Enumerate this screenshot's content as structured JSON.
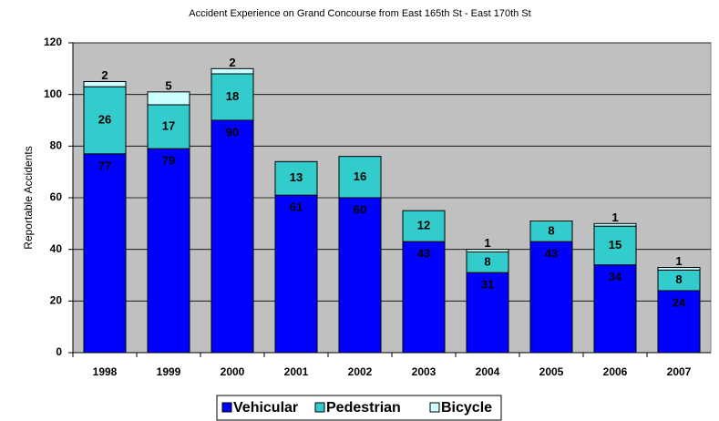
{
  "chart_data": {
    "type": "stacked_bar",
    "title": "Accident Experience on Grand Concourse from East 165th St - East 170th St",
    "y_label": "Reportable Accidents",
    "categories": [
      "1998",
      "1999",
      "2000",
      "2001",
      "2002",
      "2003",
      "2004",
      "2005",
      "2006",
      "2007"
    ],
    "series": [
      {
        "name": "Vehicular",
        "color": "#0000ff",
        "values": [
          77,
          79,
          90,
          61,
          60,
          43,
          31,
          43,
          34,
          24
        ]
      },
      {
        "name": "Pedestrian",
        "color": "#33cccc",
        "values": [
          26,
          17,
          18,
          13,
          16,
          12,
          8,
          8,
          15,
          8
        ]
      },
      {
        "name": "Bicycle",
        "color": "#ccffff",
        "values": [
          2,
          5,
          2,
          0,
          0,
          0,
          1,
          0,
          1,
          1
        ]
      }
    ],
    "ylim": [
      0,
      120
    ],
    "yticks": [
      0,
      20,
      40,
      60,
      80,
      100,
      120
    ],
    "grid": true,
    "legend": "bottom"
  }
}
